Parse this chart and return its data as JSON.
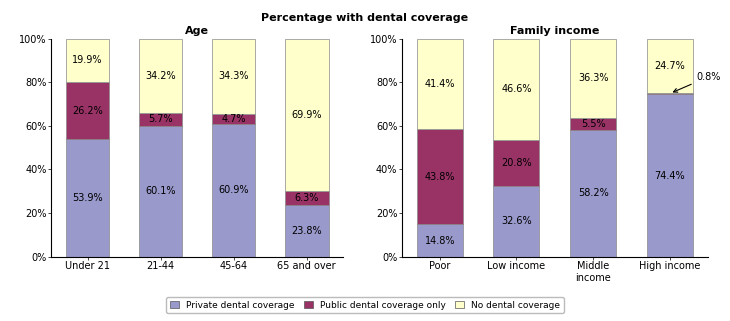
{
  "title": "Percentage with dental coverage",
  "age_title": "Age",
  "income_title": "Family income",
  "age_categories": [
    "Under 21",
    "21-44",
    "45-64",
    "65 and over"
  ],
  "income_categories": [
    "Poor",
    "Low income",
    "Middle\nincome",
    "High income"
  ],
  "age_private": [
    53.9,
    60.1,
    60.9,
    23.8
  ],
  "age_public": [
    26.2,
    5.7,
    4.7,
    6.3
  ],
  "age_none": [
    19.9,
    34.2,
    34.3,
    69.9
  ],
  "income_private": [
    14.8,
    32.6,
    58.2,
    74.4
  ],
  "income_public": [
    43.8,
    20.8,
    5.5,
    0.8
  ],
  "income_none": [
    41.4,
    46.6,
    36.3,
    24.7
  ],
  "color_private": "#9999cc",
  "color_public": "#993366",
  "color_none": "#ffffcc",
  "bar_edge_color": "#888888",
  "bar_width": 0.6,
  "legend_labels": [
    "Private dental coverage",
    "Public dental coverage only",
    "No dental coverage"
  ],
  "yticks": [
    0,
    20,
    40,
    60,
    80,
    100
  ],
  "ytick_labels": [
    "0%",
    "20%",
    "40%",
    "60%",
    "80%",
    "100%"
  ],
  "background_color": "#ffffff",
  "label_fontsize": 7,
  "title_fontsize": 8,
  "axis_title_fontsize": 8,
  "tick_fontsize": 7
}
